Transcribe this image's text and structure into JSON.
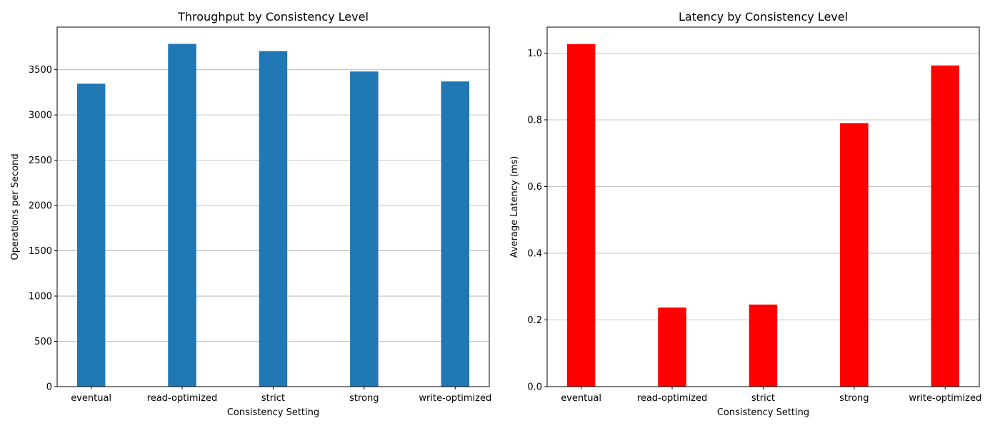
{
  "chart_data": [
    {
      "type": "bar",
      "title": "Throughput by Consistency Level",
      "xlabel": "Consistency Setting",
      "ylabel": "Operations per Second",
      "categories": [
        "eventual",
        "read-optimized",
        "strict",
        "strong",
        "write-optimized"
      ],
      "values": [
        3345,
        3785,
        3705,
        3480,
        3370
      ],
      "ylim": [
        0,
        3970
      ],
      "yticks": [
        0,
        500,
        1000,
        1500,
        2000,
        2500,
        3000,
        3500
      ],
      "ytick_labels": [
        "0",
        "500",
        "1000",
        "1500",
        "2000",
        "2500",
        "3000",
        "3500"
      ],
      "grid": "y",
      "bar_color": "#1f77b4"
    },
    {
      "type": "bar",
      "title": "Latency by Consistency Level",
      "xlabel": "Consistency Setting",
      "ylabel": "Average Latency (ms)",
      "categories": [
        "eventual",
        "read-optimized",
        "strict",
        "strong",
        "write-optimized"
      ],
      "values": [
        1.027,
        0.237,
        0.246,
        0.79,
        0.963
      ],
      "ylim": [
        0,
        1.078
      ],
      "yticks": [
        0,
        0.2,
        0.4,
        0.6,
        0.8,
        1.0
      ],
      "ytick_labels": [
        "0.0",
        "0.2",
        "0.4",
        "0.6",
        "0.8",
        "1.0"
      ],
      "grid": "y",
      "bar_color": "#ff0000"
    }
  ]
}
